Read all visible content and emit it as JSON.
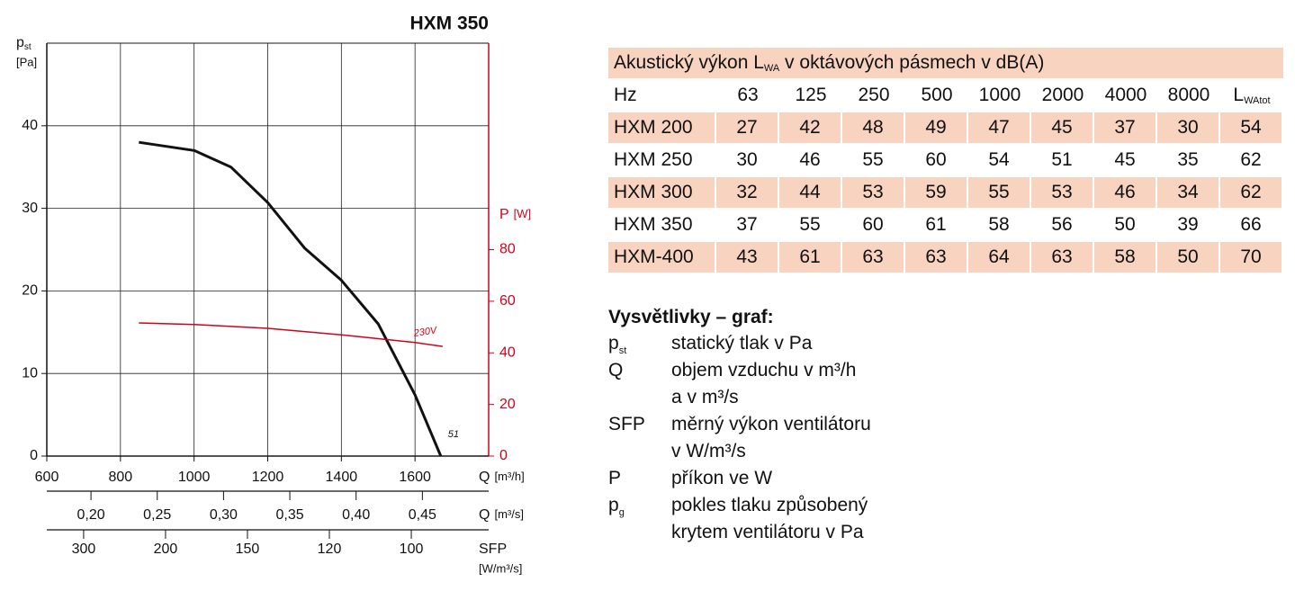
{
  "chart_data": {
    "type": "line",
    "title": "HXM 350",
    "y_label": {
      "symbol": "p",
      "sub": "st",
      "unit": "[Pa]"
    },
    "y2_label": {
      "symbol": "P",
      "unit": "[W]"
    },
    "x_label": {
      "symbol": "Q",
      "unit": "[m³/h]"
    },
    "x2_label": {
      "symbol": "Q",
      "unit": "[m³/s]"
    },
    "x3_label": {
      "symbol": "SFP",
      "unit": "[W/m³/s]"
    },
    "xlim": [
      600,
      1800
    ],
    "xticks": [
      600,
      800,
      1000,
      1200,
      1400,
      1600
    ],
    "x2lim": [
      0.16667,
      0.5
    ],
    "x2ticks": [
      {
        "value": 0.2,
        "label": "0,20"
      },
      {
        "value": 0.25,
        "label": "0,25"
      },
      {
        "value": 0.3,
        "label": "0,30"
      },
      {
        "value": 0.35,
        "label": "0,35"
      },
      {
        "value": 0.4,
        "label": "0,40"
      },
      {
        "value": 0.45,
        "label": "0,45"
      }
    ],
    "x3lim": [
      387,
      86.4
    ],
    "x3scale": "reciprocal",
    "x3ticks": [
      300,
      200,
      150,
      120,
      100
    ],
    "ylim": [
      0,
      50
    ],
    "yticks": [
      0,
      10,
      20,
      30,
      40
    ],
    "y2lim": [
      0,
      160
    ],
    "y2ticks": [
      0,
      20,
      40,
      60,
      80
    ],
    "grid": true,
    "series": [
      {
        "name": "51",
        "color": "#111111",
        "x": [
          850,
          1000,
          1100,
          1200,
          1300,
          1400,
          1500,
          1600,
          1670
        ],
        "values": [
          38,
          37,
          35,
          30.7,
          25.2,
          21.3,
          16,
          7.4,
          0
        ]
      },
      {
        "name": "230V",
        "color": "#d0021b",
        "axis": "y2",
        "x": [
          850,
          1000,
          1200,
          1400,
          1600,
          1675
        ],
        "values": [
          51.6,
          51,
          49.5,
          47,
          44,
          42.5
        ]
      }
    ]
  },
  "table": {
    "title": {
      "before": "Akustický výkon L",
      "sub": "WA",
      "after": " v oktávových pásmech v dB(A)"
    },
    "header": {
      "label": "Hz",
      "bands": [
        63,
        125,
        250,
        500,
        1000,
        2000,
        4000,
        8000
      ],
      "total": {
        "symbol": "L",
        "sub": "WAtot"
      }
    },
    "rows": [
      [
        "HXM 200",
        27,
        42,
        48,
        49,
        47,
        45,
        37,
        30,
        54
      ],
      [
        "HXM 250",
        30,
        46,
        55,
        60,
        54,
        51,
        45,
        35,
        62
      ],
      [
        "HXM 300",
        32,
        44,
        53,
        59,
        55,
        53,
        46,
        34,
        62
      ],
      [
        "HXM 350",
        37,
        55,
        60,
        61,
        58,
        56,
        50,
        39,
        66
      ],
      [
        "HXM-400",
        43,
        61,
        63,
        63,
        64,
        63,
        58,
        50,
        70
      ]
    ]
  },
  "legend": {
    "title": "Vysvětlivky – graf:",
    "items": [
      {
        "symbol": "p",
        "sub": "st",
        "lines": [
          "statický tlak v Pa"
        ]
      },
      {
        "symbol": "Q",
        "lines": [
          "objem vzduchu v m³/h",
          "a v m³/s"
        ]
      },
      {
        "symbol": "SFP",
        "lines": [
          "měrný výkon ventilátoru",
          "v W/m³/s"
        ]
      },
      {
        "symbol": "P",
        "lines": [
          "příkon ve W"
        ]
      },
      {
        "symbol": "p",
        "sub": "g",
        "lines": [
          "pokles tlaku způsobený",
          "krytem ventilátoru v Pa"
        ]
      }
    ]
  }
}
